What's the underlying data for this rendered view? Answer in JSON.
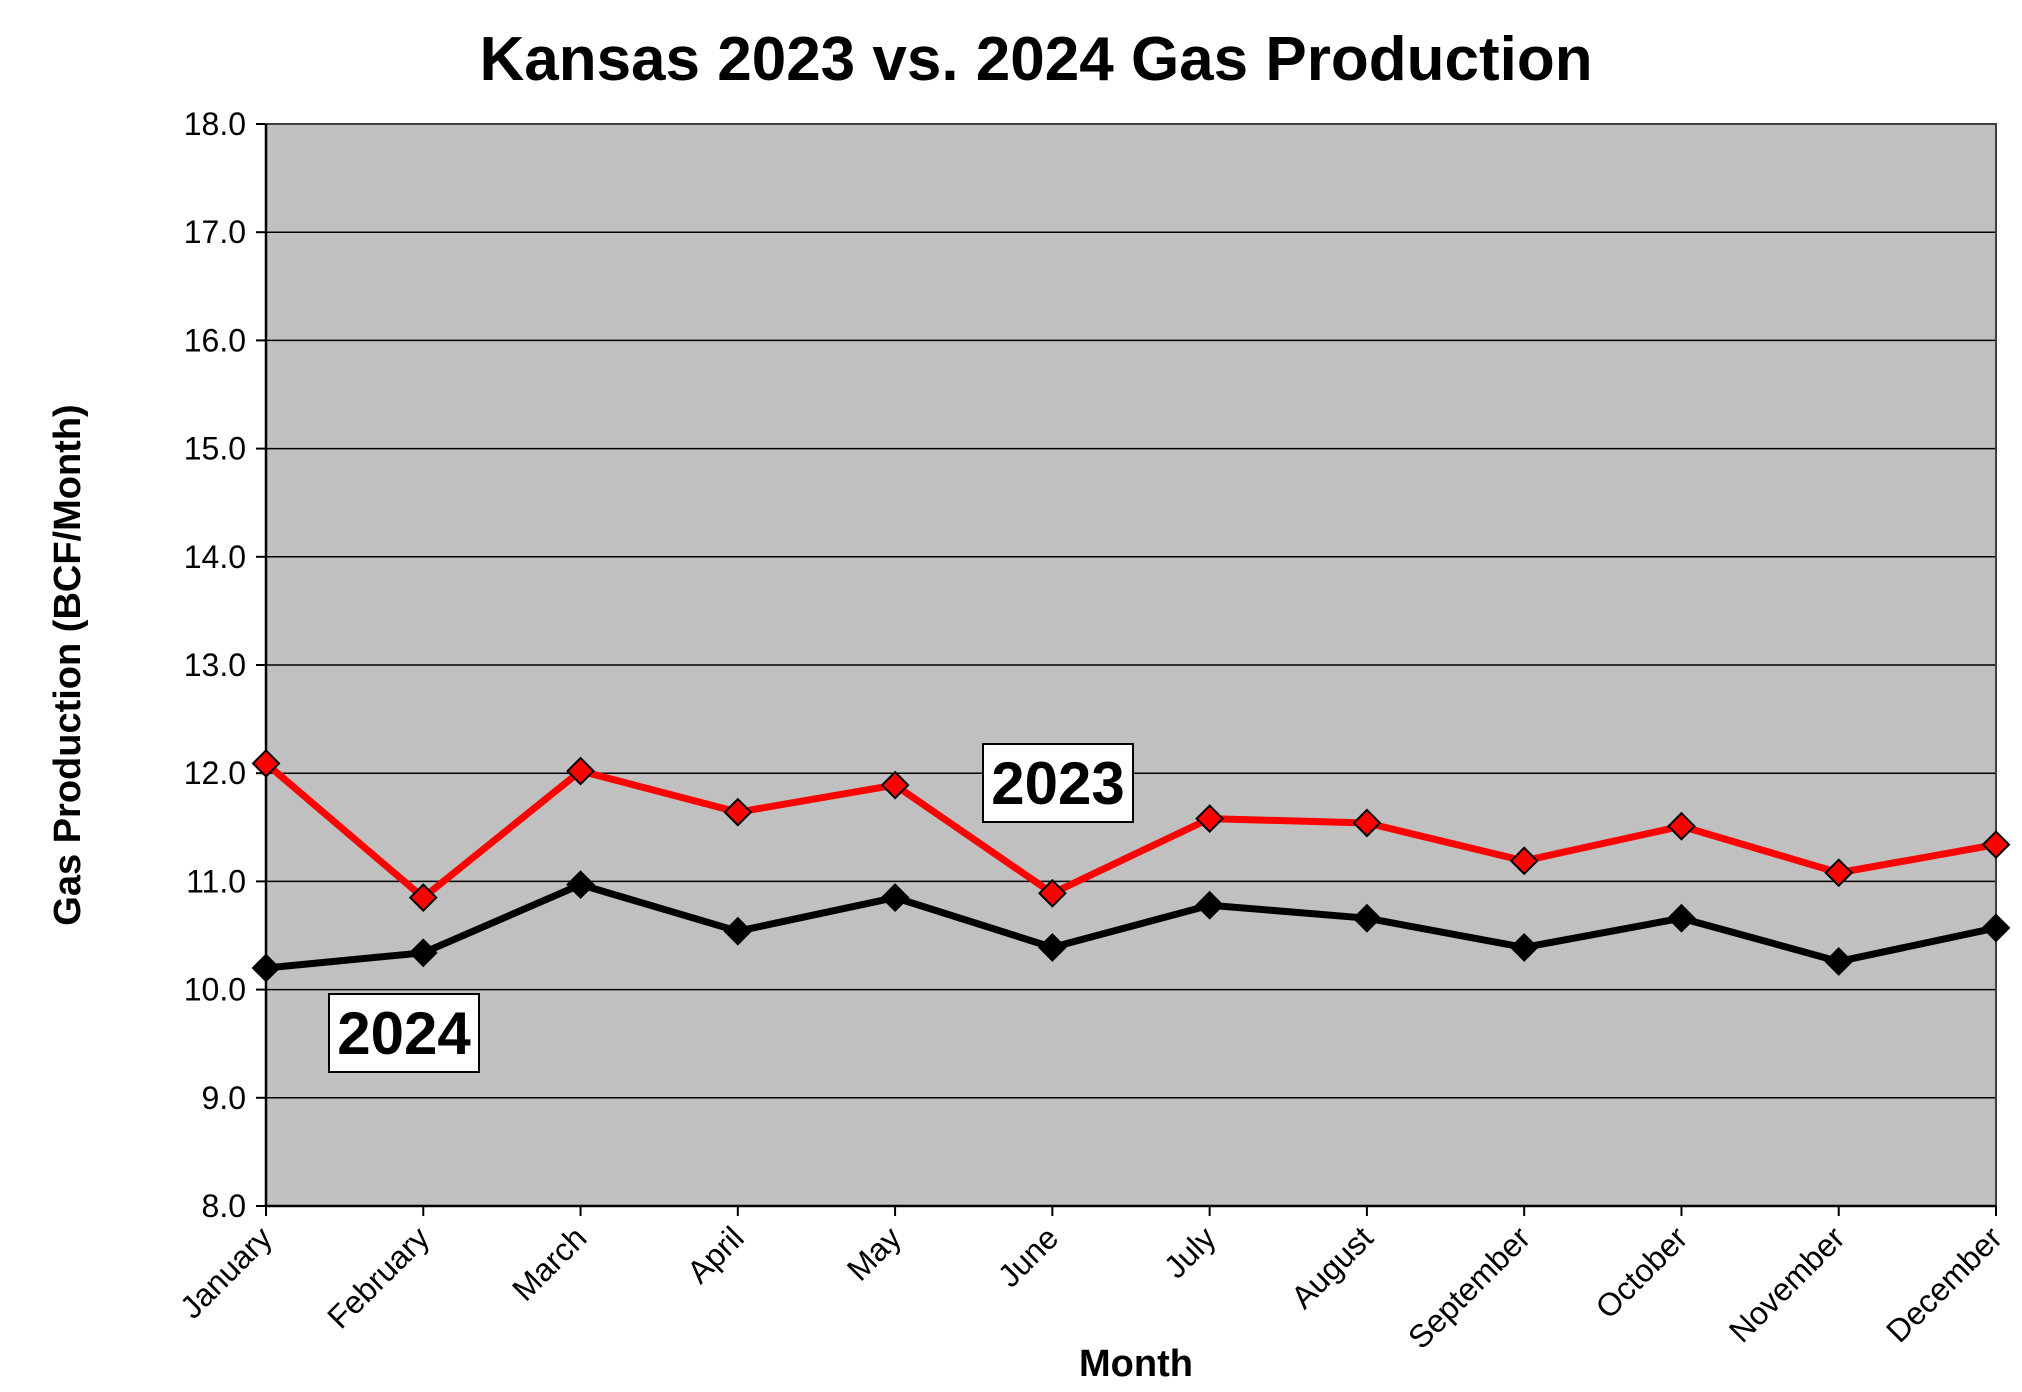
{
  "chart_data": {
    "type": "line",
    "title": "Kansas 2023 vs. 2024 Gas Production",
    "xlabel": "Month",
    "ylabel": "Gas Production (BCF/Month)",
    "categories": [
      "January",
      "February",
      "March",
      "April",
      "May",
      "June",
      "July",
      "August",
      "September",
      "October",
      "November",
      "December"
    ],
    "ylim": [
      8.0,
      18.0
    ],
    "yticks": [
      "8.0",
      "9.0",
      "10.0",
      "11.0",
      "12.0",
      "13.0",
      "14.0",
      "15.0",
      "16.0",
      "17.0",
      "18.0"
    ],
    "grid": true,
    "plot_background": "#c0c0c0",
    "series": [
      {
        "name": "2023",
        "color": "#ff0000",
        "marker": "diamond",
        "values": [
          12.09,
          10.85,
          12.02,
          11.64,
          11.89,
          10.89,
          11.58,
          11.54,
          11.19,
          11.51,
          11.08,
          11.34
        ]
      },
      {
        "name": "2024",
        "color": "#000000",
        "marker": "diamond",
        "values": [
          10.2,
          10.34,
          10.97,
          10.54,
          10.85,
          10.39,
          10.78,
          10.66,
          10.39,
          10.66,
          10.26,
          10.57
        ]
      }
    ]
  }
}
